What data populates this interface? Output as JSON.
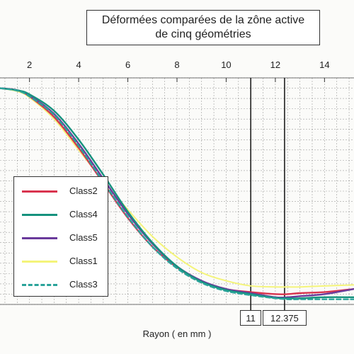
{
  "title": {
    "line1": "Déformées comparées de la zône active",
    "line2": "de cinq géométries"
  },
  "colors": {
    "Class2": "#d9344f",
    "Class4": "#16927e",
    "Class5": "#6a3a9b",
    "Class1": "#f4f47a",
    "Class3": "#2aa39a"
  },
  "chart_data": {
    "type": "line",
    "xlabel": "Rayon ( en mm )",
    "ylabel": "",
    "xlim": [
      0.8,
      15.2
    ],
    "x_ticks": [
      2,
      4,
      6,
      8,
      10,
      12,
      14
    ],
    "x_tick_labels": [
      "2",
      "4",
      "6",
      "8",
      "10",
      "12",
      "14"
    ],
    "ylim": [
      -1.05,
      0.05
    ],
    "grid": true,
    "legend_position": "left",
    "markers": [
      {
        "x": 11,
        "label": "11"
      },
      {
        "x": 12.375,
        "label": "12.375"
      }
    ],
    "series": [
      {
        "name": "Class2",
        "style": "solid",
        "x": [
          0.8,
          1.5,
          2,
          3,
          4,
          5,
          6,
          7,
          8,
          9,
          10,
          11,
          12,
          12.5,
          13,
          14,
          15.2
        ],
        "y": [
          0,
          -0.01,
          -0.04,
          -0.14,
          -0.29,
          -0.46,
          -0.63,
          -0.77,
          -0.87,
          -0.94,
          -0.976,
          -0.99,
          -1.0,
          -1.0,
          -0.995,
          -0.99,
          -0.975
        ]
      },
      {
        "name": "Class4",
        "style": "solid",
        "x": [
          0.8,
          1.5,
          2,
          3,
          4,
          5,
          6,
          7,
          8,
          9,
          10,
          11,
          12,
          12.5,
          13,
          14,
          15.2
        ],
        "y": [
          0,
          -0.01,
          -0.03,
          -0.11,
          -0.25,
          -0.42,
          -0.6,
          -0.75,
          -0.865,
          -0.94,
          -0.98,
          -1.0,
          -1.018,
          -1.02,
          -1.02,
          -1.015,
          -1.015
        ]
      },
      {
        "name": "Class5",
        "style": "solid",
        "x": [
          0.8,
          1.5,
          2,
          3,
          4,
          5,
          6,
          7,
          8,
          9,
          10,
          11,
          12,
          12.5,
          13,
          14,
          15.2
        ],
        "y": [
          0,
          -0.01,
          -0.035,
          -0.125,
          -0.27,
          -0.44,
          -0.61,
          -0.755,
          -0.865,
          -0.935,
          -0.975,
          -0.995,
          -1.015,
          -1.015,
          -1.01,
          -1.0,
          -0.975
        ]
      },
      {
        "name": "Class1",
        "style": "solid",
        "x": [
          0.8,
          1.5,
          2,
          3,
          4,
          5,
          6,
          7,
          8,
          9,
          10,
          11,
          12,
          12.5,
          13,
          14,
          15.2
        ],
        "y": [
          0,
          -0.015,
          -0.045,
          -0.15,
          -0.3,
          -0.45,
          -0.59,
          -0.72,
          -0.82,
          -0.895,
          -0.935,
          -0.96,
          -0.965,
          -0.965,
          -0.965,
          -0.96,
          -0.955
        ]
      },
      {
        "name": "Class3",
        "style": "dashed",
        "x": [
          0.8,
          1.5,
          2,
          3,
          4,
          5,
          6,
          7,
          8,
          9,
          10,
          11,
          12,
          12.5,
          13,
          14,
          15.2
        ],
        "y": [
          0,
          -0.012,
          -0.04,
          -0.13,
          -0.28,
          -0.455,
          -0.625,
          -0.77,
          -0.875,
          -0.945,
          -0.985,
          -1.005,
          -1.02,
          -1.025,
          -1.025,
          -1.025,
          -1.025
        ]
      }
    ]
  }
}
